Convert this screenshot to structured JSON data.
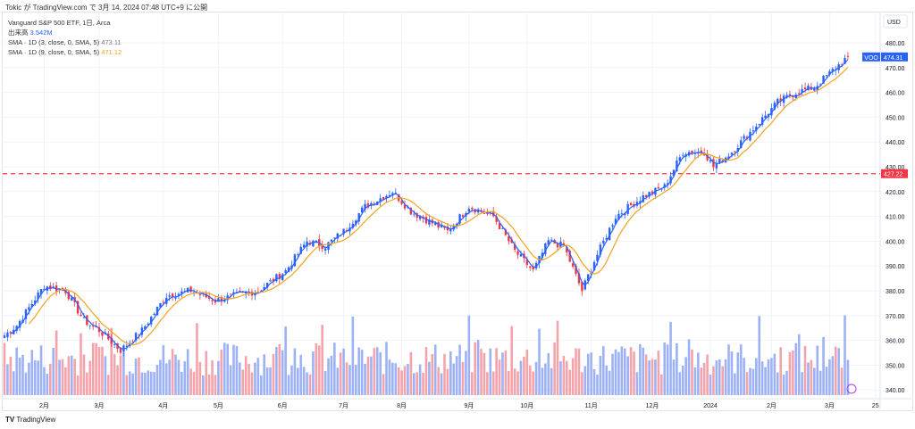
{
  "header": "Tokic が TradingView.com で 3月 14, 2024 07:48 UTC+9 に公開",
  "legend": {
    "title": "Vanguard S&P 500 ETF, 1日, Arca",
    "volume_label": "出来高",
    "volume_value": "3.542M",
    "sma3_label": "SMA · 1D (3, close, 0, SMA, 5)",
    "sma3_value": "473.11",
    "sma9_label": "SMA · 1D (9, close, 0, SMA, 5)",
    "sma9_value": "471.12"
  },
  "brand": "TradingView",
  "chart_data": {
    "type": "candlestick",
    "symbol": "VOO",
    "currency": "USD",
    "last_price": "474.31",
    "hline_price": "427.22",
    "ylim": [
      336,
      484
    ],
    "y_ticks": [
      "480.00",
      "470.00",
      "460.00",
      "450.00",
      "440.00",
      "430.00",
      "420.00",
      "410.00",
      "400.00",
      "390.00",
      "380.00",
      "370.00",
      "360.00",
      "350.00",
      "340.00"
    ],
    "x_ticks": [
      {
        "label": "2月",
        "day": 13
      },
      {
        "label": "3月",
        "day": 31
      },
      {
        "label": "4月",
        "day": 52
      },
      {
        "label": "5月",
        "day": 70
      },
      {
        "label": "6月",
        "day": 91
      },
      {
        "label": "7月",
        "day": 111
      },
      {
        "label": "8月",
        "day": 130
      },
      {
        "label": "9月",
        "day": 152
      },
      {
        "label": "10月",
        "day": 171
      },
      {
        "label": "11月",
        "day": 192
      },
      {
        "label": "12月",
        "day": 212
      },
      {
        "label": "2024",
        "day": 231
      },
      {
        "label": "2月",
        "day": 251
      },
      {
        "label": "3月",
        "day": 270
      },
      {
        "label": "25",
        "day": 285
      }
    ],
    "key_closes": [
      [
        0,
        362
      ],
      [
        4,
        366
      ],
      [
        13,
        382
      ],
      [
        20,
        380
      ],
      [
        26,
        368
      ],
      [
        31,
        364
      ],
      [
        38,
        356
      ],
      [
        45,
        364
      ],
      [
        53,
        378
      ],
      [
        61,
        380
      ],
      [
        69,
        376
      ],
      [
        75,
        378
      ],
      [
        83,
        380
      ],
      [
        92,
        388
      ],
      [
        99,
        400
      ],
      [
        105,
        398
      ],
      [
        111,
        404
      ],
      [
        118,
        414
      ],
      [
        127,
        420
      ],
      [
        133,
        412
      ],
      [
        139,
        408
      ],
      [
        145,
        404
      ],
      [
        152,
        414
      ],
      [
        160,
        410
      ],
      [
        167,
        396
      ],
      [
        173,
        388
      ],
      [
        178,
        400
      ],
      [
        183,
        398
      ],
      [
        189,
        380
      ],
      [
        193,
        392
      ],
      [
        200,
        410
      ],
      [
        209,
        418
      ],
      [
        216,
        422
      ],
      [
        222,
        436
      ],
      [
        229,
        436
      ],
      [
        232,
        430
      ],
      [
        238,
        436
      ],
      [
        244,
        444
      ],
      [
        253,
        456
      ],
      [
        259,
        460
      ],
      [
        265,
        462
      ],
      [
        272,
        470
      ],
      [
        276,
        474.31
      ]
    ],
    "sma_periods": [
      3,
      9
    ],
    "colors": {
      "up": "#2962ff",
      "down": "#f23645",
      "sma3": "#2962ff",
      "sma9": "#f7a21b"
    }
  }
}
